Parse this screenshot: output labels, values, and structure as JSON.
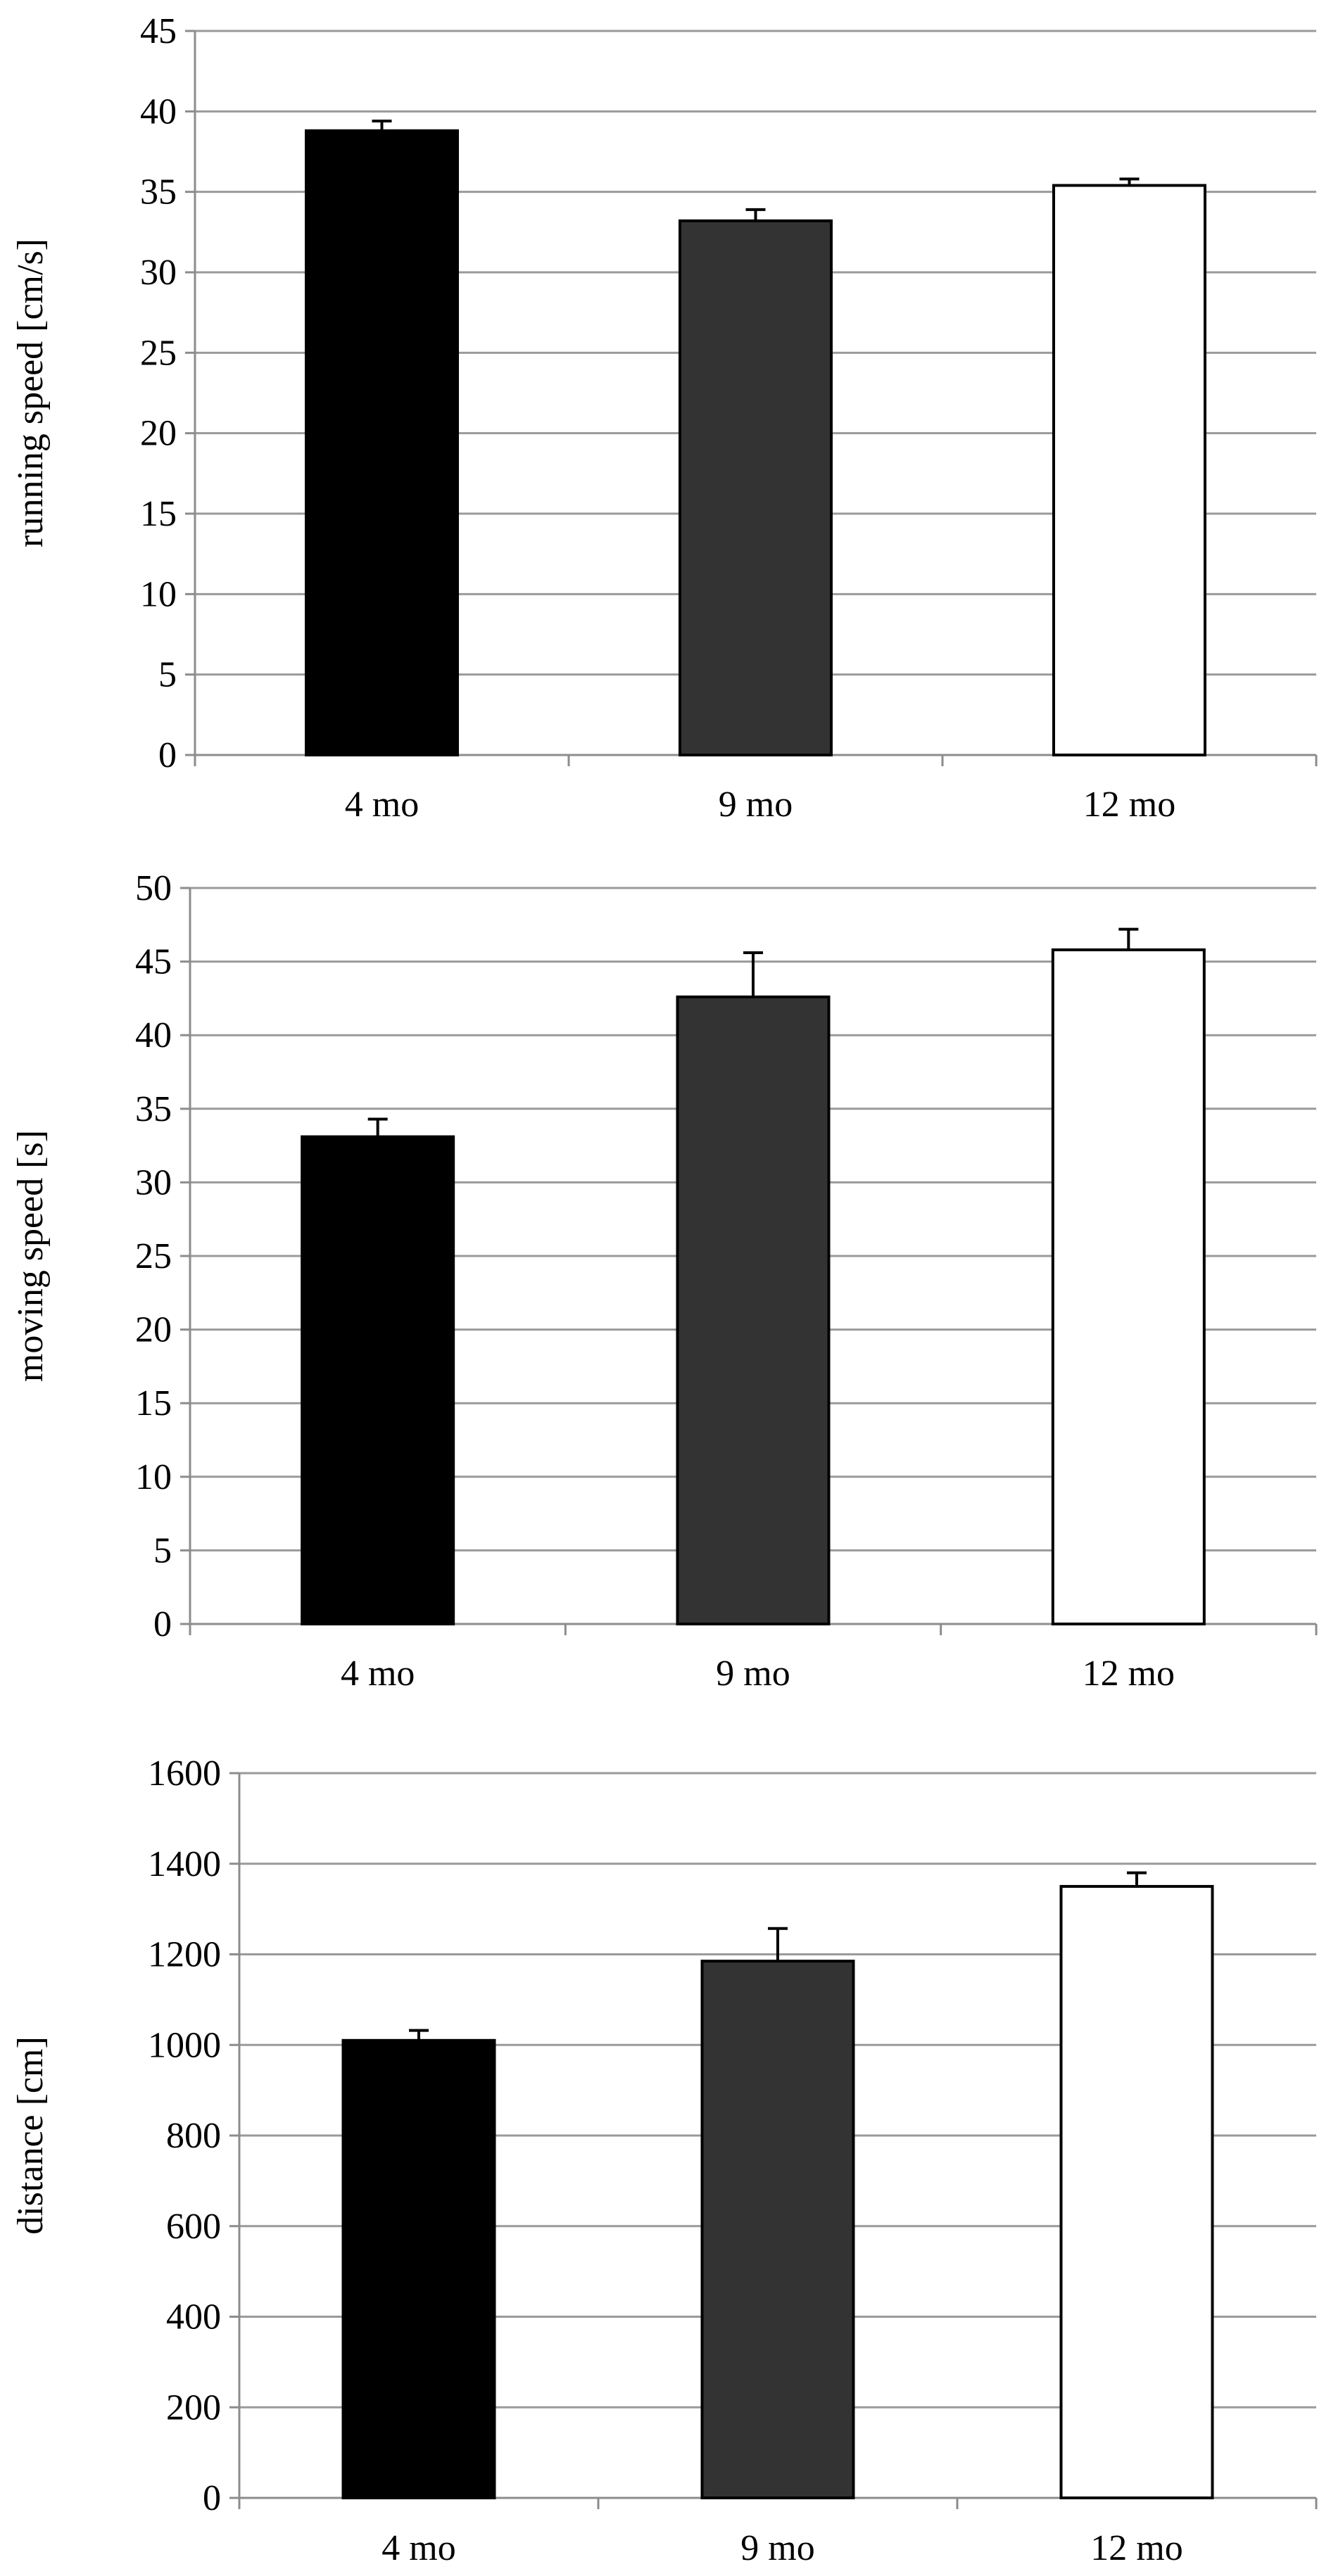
{
  "chart_data": [
    {
      "type": "bar",
      "categories": [
        "4 mo",
        "9 mo",
        "12 mo"
      ],
      "values": [
        38.8,
        33.2,
        35.4
      ],
      "error": [
        0.6,
        0.7,
        0.4
      ],
      "colors": [
        "#000000",
        "#333333",
        "#ffffff"
      ],
      "title": "",
      "xlabel": "",
      "ylabel": "running speed [cm/s]",
      "ylim": [
        0,
        45
      ],
      "yticks": [
        0,
        5,
        10,
        15,
        20,
        25,
        30,
        35,
        40,
        45
      ],
      "grid": true
    },
    {
      "type": "bar",
      "categories": [
        "4 mo",
        "9 mo",
        "12 mo"
      ],
      "values": [
        33.1,
        42.6,
        45.8
      ],
      "error": [
        1.2,
        3.0,
        1.4
      ],
      "colors": [
        "#000000",
        "#333333",
        "#ffffff"
      ],
      "title": "",
      "xlabel": "",
      "ylabel": "moving speed [s]",
      "ylim": [
        0,
        50
      ],
      "yticks": [
        0,
        5,
        10,
        15,
        20,
        25,
        30,
        35,
        40,
        45,
        50
      ],
      "grid": true
    },
    {
      "type": "bar",
      "categories": [
        "4 mo",
        "9 mo",
        "12 mo"
      ],
      "values": [
        1010,
        1185,
        1350
      ],
      "error": [
        22,
        72,
        30
      ],
      "colors": [
        "#000000",
        "#333333",
        "#ffffff"
      ],
      "title": "",
      "xlabel": "",
      "ylabel": "distance [cm]",
      "ylim": [
        0,
        1600
      ],
      "yticks": [
        0,
        200,
        400,
        600,
        800,
        1000,
        1200,
        1400,
        1600
      ],
      "grid": true
    }
  ]
}
